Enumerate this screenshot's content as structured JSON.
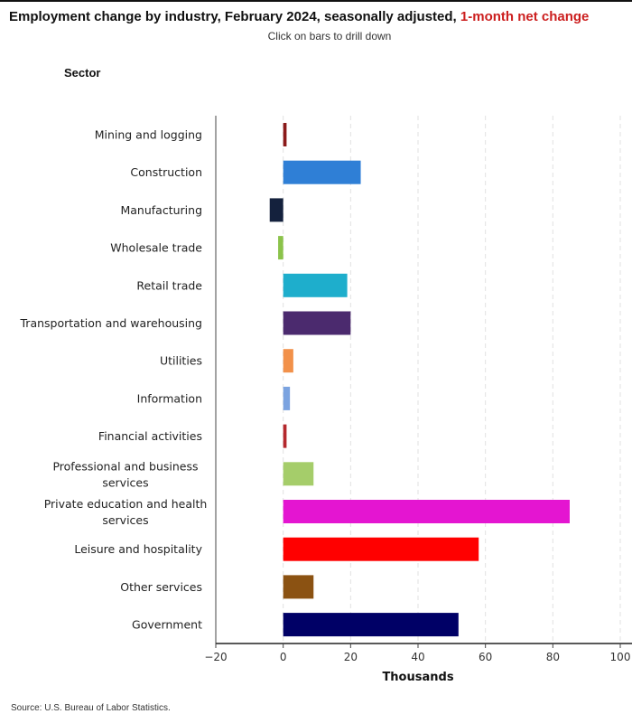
{
  "header": {
    "title_main": "Employment change by industry, February 2024, seasonally adjusted,",
    "title_highlight": "1-month net change",
    "subtitle": "Click on bars to drill down",
    "sector_label": "Sector"
  },
  "footer": {
    "source": "Source: U.S. Bureau of Labor Statistics."
  },
  "chart_data": {
    "type": "bar",
    "orientation": "horizontal",
    "title": "Employment change by industry, February 2024, seasonally adjusted, 1-month net change",
    "xlabel": "Thousands",
    "ylabel": "Sector",
    "xlim": [
      -20,
      100
    ],
    "xticks": [
      -20,
      0,
      20,
      40,
      60,
      80,
      100
    ],
    "grid": true,
    "categories": [
      "Mining and logging",
      "Construction",
      "Manufacturing",
      "Wholesale trade",
      "Retail trade",
      "Transportation and warehousing",
      "Utilities",
      "Information",
      "Financial activities",
      "Professional and business services",
      "Private education and health services",
      "Leisure and hospitality",
      "Other services",
      "Government"
    ],
    "values": [
      1,
      23,
      -4,
      -1.5,
      19,
      20,
      3,
      2,
      1,
      9,
      85,
      58,
      9,
      52
    ],
    "colors": [
      "#8b1a1a",
      "#2f7fd6",
      "#14213d",
      "#8bc34a",
      "#1eaecc",
      "#4b2a6e",
      "#f2914a",
      "#7ba3e0",
      "#b5282d",
      "#a5cd6a",
      "#e415d1",
      "#ff0000",
      "#8b5212",
      "#000066"
    ]
  }
}
